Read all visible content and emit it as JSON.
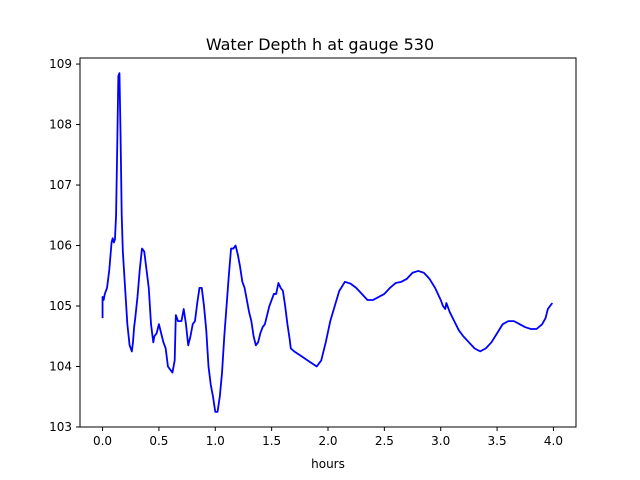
{
  "chart_data": {
    "type": "line",
    "title": "Water Depth h at gauge 530",
    "xlabel": "hours",
    "ylabel": "",
    "xlim": [
      -0.2,
      4.2
    ],
    "ylim": [
      103.0,
      109.1
    ],
    "xticks": [
      0.0,
      0.5,
      1.0,
      1.5,
      2.0,
      2.5,
      3.0,
      3.5,
      4.0
    ],
    "xtick_labels": [
      "0.0",
      "0.5",
      "1.0",
      "1.5",
      "2.0",
      "2.5",
      "3.0",
      "3.5",
      "4.0"
    ],
    "yticks": [
      103,
      104,
      105,
      106,
      107,
      108,
      109
    ],
    "ytick_labels": [
      "103",
      "104",
      "105",
      "106",
      "107",
      "108",
      "109"
    ],
    "grid": false,
    "colors": {
      "series": "#0000ff",
      "axes": "#000000",
      "background": "#ffffff"
    },
    "series": [
      {
        "x": [
          0.0,
          0.0,
          0.01,
          0.02,
          0.04,
          0.06,
          0.08,
          0.09,
          0.1,
          0.11,
          0.12,
          0.13,
          0.14,
          0.15,
          0.16,
          0.17,
          0.18,
          0.19,
          0.2,
          0.22,
          0.24,
          0.26,
          0.27,
          0.28,
          0.29,
          0.31,
          0.33,
          0.35,
          0.37,
          0.39,
          0.41,
          0.43,
          0.45,
          0.46,
          0.48,
          0.5,
          0.52,
          0.54,
          0.56,
          0.58,
          0.6,
          0.62,
          0.64,
          0.65,
          0.66,
          0.67,
          0.7,
          0.72,
          0.74,
          0.76,
          0.78,
          0.8,
          0.82,
          0.84,
          0.86,
          0.88,
          0.9,
          0.92,
          0.94,
          0.96,
          0.98,
          1.0,
          1.02,
          1.04,
          1.06,
          1.08,
          1.1,
          1.12,
          1.14,
          1.16,
          1.18,
          1.2,
          1.22,
          1.24,
          1.26,
          1.28,
          1.3,
          1.32,
          1.34,
          1.36,
          1.38,
          1.4,
          1.42,
          1.44,
          1.46,
          1.48,
          1.5,
          1.52,
          1.54,
          1.56,
          1.58,
          1.6,
          1.62,
          1.64,
          1.66,
          1.67,
          1.7,
          1.74,
          1.78,
          1.82,
          1.86,
          1.9,
          1.94,
          1.98,
          2.02,
          2.06,
          2.1,
          2.15,
          2.2,
          2.25,
          2.3,
          2.35,
          2.4,
          2.45,
          2.5,
          2.55,
          2.6,
          2.65,
          2.7,
          2.75,
          2.8,
          2.85,
          2.9,
          2.95,
          3.0,
          3.02,
          3.04,
          3.05,
          3.08,
          3.12,
          3.16,
          3.2,
          3.25,
          3.3,
          3.35,
          3.4,
          3.45,
          3.5,
          3.55,
          3.6,
          3.65,
          3.7,
          3.75,
          3.8,
          3.85,
          3.9,
          3.93,
          3.95,
          3.97,
          3.99
        ],
        "y": [
          104.8,
          105.15,
          105.1,
          105.2,
          105.3,
          105.6,
          106.05,
          106.12,
          106.05,
          106.1,
          106.5,
          107.6,
          108.8,
          108.85,
          107.8,
          106.5,
          105.9,
          105.6,
          105.3,
          104.7,
          104.35,
          104.25,
          104.4,
          104.65,
          104.8,
          105.15,
          105.6,
          105.95,
          105.9,
          105.6,
          105.3,
          104.7,
          104.4,
          104.5,
          104.55,
          104.7,
          104.55,
          104.4,
          104.3,
          104.0,
          103.95,
          103.9,
          104.1,
          104.85,
          104.8,
          104.75,
          104.75,
          104.95,
          104.7,
          104.35,
          104.5,
          104.7,
          104.75,
          105.05,
          105.3,
          105.3,
          105.0,
          104.6,
          104.0,
          103.7,
          103.5,
          103.25,
          103.25,
          103.5,
          103.9,
          104.5,
          105.0,
          105.5,
          105.95,
          105.95,
          106.0,
          105.85,
          105.65,
          105.4,
          105.3,
          105.1,
          104.9,
          104.75,
          104.5,
          104.35,
          104.4,
          104.55,
          104.65,
          104.7,
          104.85,
          105.0,
          105.1,
          105.2,
          105.2,
          105.38,
          105.3,
          105.25,
          105.0,
          104.7,
          104.45,
          104.3,
          104.25,
          104.2,
          104.15,
          104.1,
          104.05,
          104.0,
          104.1,
          104.4,
          104.75,
          105.0,
          105.25,
          105.4,
          105.37,
          105.3,
          105.2,
          105.1,
          105.1,
          105.15,
          105.2,
          105.3,
          105.38,
          105.4,
          105.45,
          105.55,
          105.58,
          105.55,
          105.45,
          105.3,
          105.1,
          105.0,
          104.95,
          105.05,
          104.9,
          104.75,
          104.6,
          104.5,
          104.4,
          104.3,
          104.25,
          104.3,
          104.4,
          104.55,
          104.7,
          104.75,
          104.75,
          104.7,
          104.65,
          104.62,
          104.62,
          104.7,
          104.8,
          104.95,
          105.0,
          105.05
        ]
      }
    ]
  }
}
